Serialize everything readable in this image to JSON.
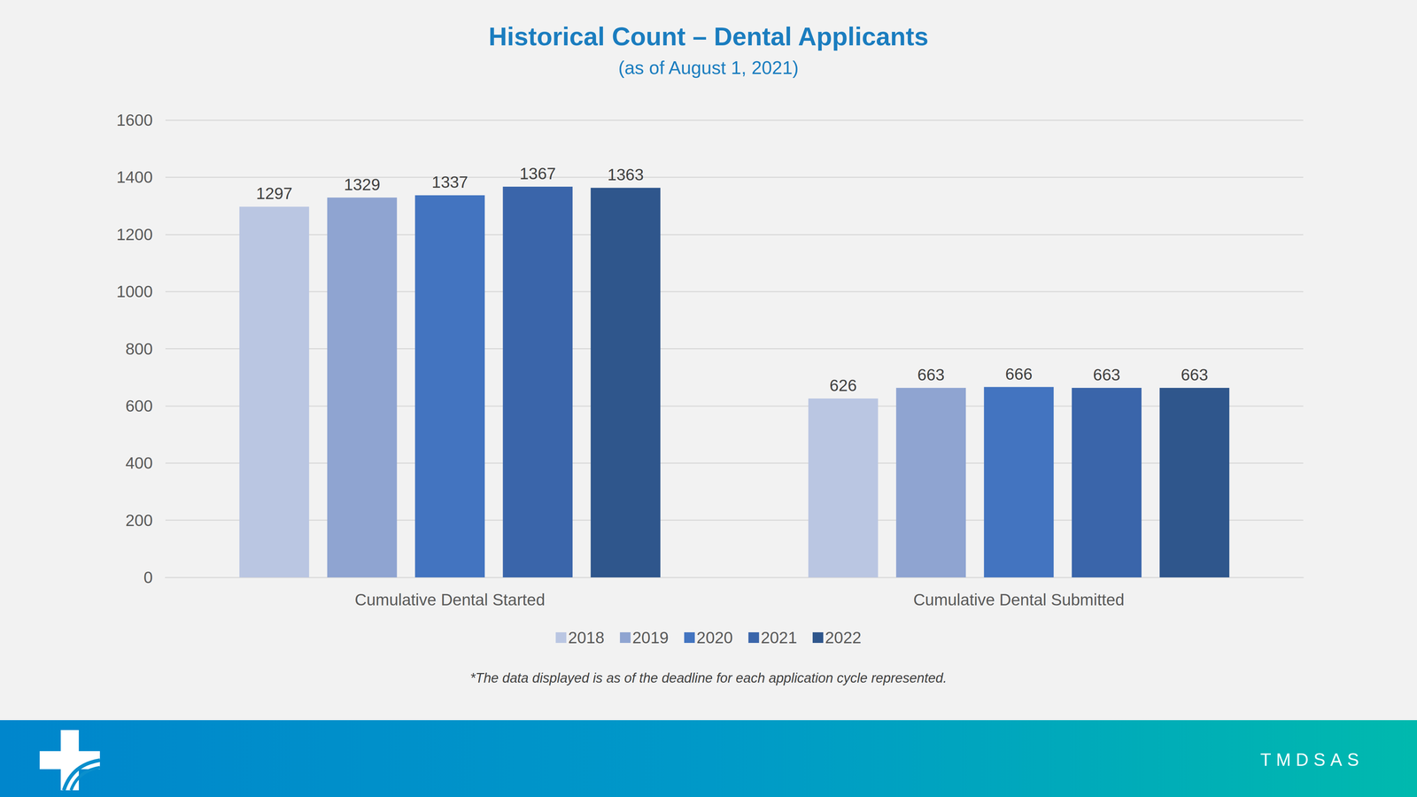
{
  "chart_data": {
    "type": "bar",
    "title": "Historical Count – Dental Applicants",
    "subtitle": "(as of August 1, 2021)",
    "categories": [
      "Cumulative Dental Started",
      "Cumulative Dental Submitted"
    ],
    "series": [
      {
        "name": "2018",
        "color": "#bac6e2",
        "values": [
          1297,
          626
        ]
      },
      {
        "name": "2019",
        "color": "#8fa4d1",
        "values": [
          1329,
          663
        ]
      },
      {
        "name": "2020",
        "color": "#4374c0",
        "values": [
          1337,
          666
        ]
      },
      {
        "name": "2021",
        "color": "#3a65aa",
        "values": [
          1367,
          663
        ]
      },
      {
        "name": "2022",
        "color": "#2f568c",
        "values": [
          1363,
          663
        ]
      }
    ],
    "ylim": [
      0,
      1600
    ],
    "yticks": [
      0,
      200,
      400,
      600,
      800,
      1000,
      1200,
      1400,
      1600
    ],
    "grid": true,
    "data_labels": true,
    "legend": "bottom",
    "annotations": [
      "*The data displayed is as of the deadline for each application cycle represented."
    ]
  },
  "footer": {
    "brand": "TMDSAS"
  }
}
